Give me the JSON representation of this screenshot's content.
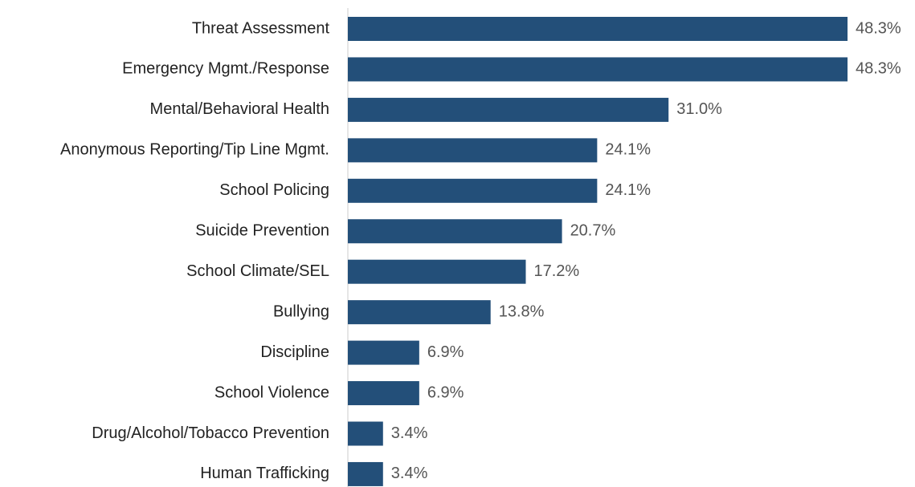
{
  "chart_data": {
    "type": "barh",
    "categories": [
      "Threat Assessment",
      "Emergency Mgmt./Response",
      "Mental/Behavioral Health",
      "Anonymous Reporting/Tip Line Mgmt.",
      "School Policing",
      "Suicide Prevention",
      "School Climate/SEL",
      "Bullying",
      "Discipline",
      "School Violence",
      "Drug/Alcohol/Tobacco Prevention",
      "Human Trafficking"
    ],
    "values": [
      48.3,
      48.3,
      31.0,
      24.1,
      24.1,
      20.7,
      17.2,
      13.8,
      6.9,
      6.9,
      3.4,
      3.4
    ],
    "value_labels": [
      "48.3%",
      "48.3%",
      "31.0%",
      "24.1%",
      "24.1%",
      "20.7%",
      "17.2%",
      "13.8%",
      "6.9%",
      "6.9%",
      "3.4%",
      "3.4%"
    ],
    "color": "#234f79"
  }
}
